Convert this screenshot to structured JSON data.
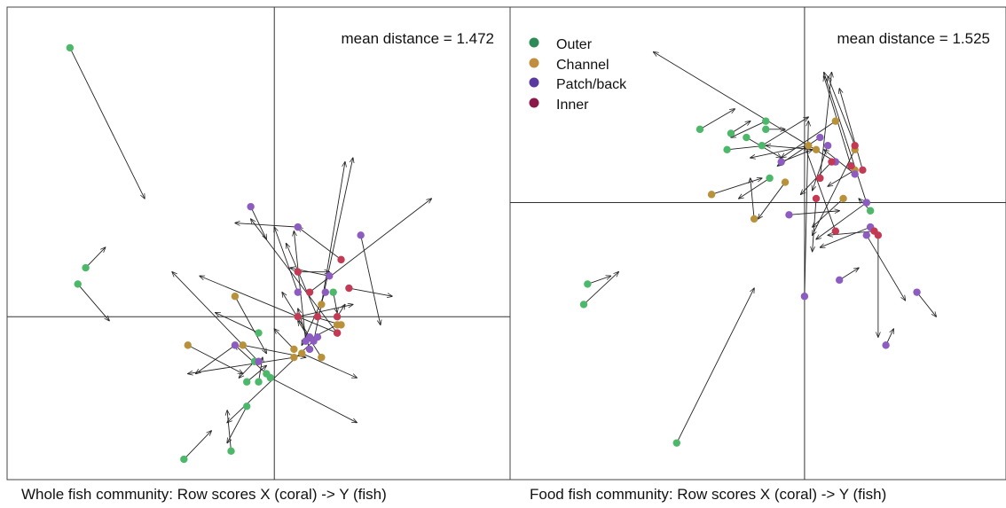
{
  "colors": {
    "outer": "#4db86a",
    "channel": "#b8913a",
    "patchback": "#8c5cc0",
    "inner": "#c23a54",
    "legend_outer": "#2e8b57",
    "legend_channel": "#c08e3e",
    "legend_patchback": "#5b3aa0",
    "legend_inner": "#8b1a4a"
  },
  "legend": [
    {
      "key": "outer",
      "label": "Outer"
    },
    {
      "key": "channel",
      "label": "Channel"
    },
    {
      "key": "patchback",
      "label": "Patch/back"
    },
    {
      "key": "inner",
      "label": "Inner"
    }
  ],
  "chart_data": [
    {
      "type": "scatter",
      "title": "Whole fish community: Row scores X (coral) -> Y (fish)",
      "annotation": "mean distance = 1.472",
      "xlim": [
        -3.4,
        3.0
      ],
      "ylim": [
        -2.0,
        3.8
      ],
      "grid": false,
      "legend": "none",
      "points": [
        {
          "group": "outer",
          "x": -2.6,
          "y": 3.3,
          "x2": -1.65,
          "y2": 1.45
        },
        {
          "group": "outer",
          "x": -2.4,
          "y": 0.6,
          "x2": -2.15,
          "y2": 0.85
        },
        {
          "group": "outer",
          "x": -2.5,
          "y": 0.4,
          "x2": -2.1,
          "y2": -0.05
        },
        {
          "group": "outer",
          "x": -1.15,
          "y": -1.75,
          "x2": -0.8,
          "y2": -1.4
        },
        {
          "group": "outer",
          "x": -0.55,
          "y": -1.65,
          "x2": -0.6,
          "y2": -1.15
        },
        {
          "group": "outer",
          "x": -0.35,
          "y": -1.1,
          "x2": -0.6,
          "y2": -1.55
        },
        {
          "group": "outer",
          "x": -0.2,
          "y": -0.2,
          "x2": -0.75,
          "y2": 0.05
        },
        {
          "group": "outer",
          "x": -0.25,
          "y": -0.55,
          "x2": -0.45,
          "y2": -0.75
        },
        {
          "group": "outer",
          "x": -0.1,
          "y": -0.7,
          "x2": -0.5,
          "y2": -0.35
        },
        {
          "group": "outer",
          "x": -0.35,
          "y": -0.8,
          "x2": -0.1,
          "y2": -0.6
        },
        {
          "group": "outer",
          "x": -0.2,
          "y": -0.8,
          "x2": -0.15,
          "y2": -0.5
        },
        {
          "group": "outer",
          "x": 0.75,
          "y": 0.3,
          "x2": 0.8,
          "y2": 0.05
        },
        {
          "group": "channel",
          "x": -1.1,
          "y": -0.35,
          "x2": -0.4,
          "y2": -0.7
        },
        {
          "group": "channel",
          "x": -0.4,
          "y": -0.35,
          "x2": 0.4,
          "y2": -0.5
        },
        {
          "group": "channel",
          "x": -0.5,
          "y": 0.25,
          "x2": -0.1,
          "y2": -0.45
        },
        {
          "group": "channel",
          "x": 0.25,
          "y": -0.4,
          "x2": 0.0,
          "y2": -0.15
        },
        {
          "group": "channel",
          "x": 0.25,
          "y": -0.5,
          "x2": -1.1,
          "y2": -0.7
        },
        {
          "group": "channel",
          "x": 0.6,
          "y": 0.15,
          "x2": 0.9,
          "y2": 1.9
        },
        {
          "group": "channel",
          "x": 0.6,
          "y": -0.5,
          "x2": 0.3,
          "y2": -0.05
        },
        {
          "group": "channel",
          "x": 0.8,
          "y": -0.1,
          "x2": 0.4,
          "y2": -0.3
        },
        {
          "group": "channel",
          "x": 0.85,
          "y": -0.1,
          "x2": 0.5,
          "y2": 0.0
        },
        {
          "group": "patchback",
          "x": -0.3,
          "y": 1.35,
          "x2": -0.1,
          "y2": 0.95
        },
        {
          "group": "patchback",
          "x": 0.3,
          "y": 1.1,
          "x2": -0.5,
          "y2": 1.15
        },
        {
          "group": "patchback",
          "x": 1.1,
          "y": 1.0,
          "x2": 1.35,
          "y2": -0.1
        },
        {
          "group": "patchback",
          "x": 0.7,
          "y": 0.5,
          "x2": 0.2,
          "y2": 0.6
        },
        {
          "group": "patchback",
          "x": 0.3,
          "y": 0.3,
          "x2": 0.0,
          "y2": 1.1
        },
        {
          "group": "patchback",
          "x": 0.45,
          "y": -0.25,
          "x2": 0.1,
          "y2": 0.3
        },
        {
          "group": "patchback",
          "x": 0.4,
          "y": -0.3,
          "x2": 0.25,
          "y2": 1.05
        },
        {
          "group": "patchback",
          "x": 0.5,
          "y": -0.3,
          "x2": 1.0,
          "y2": 1.95
        },
        {
          "group": "patchback",
          "x": -0.5,
          "y": -0.35,
          "x2": -1.0,
          "y2": -0.7
        },
        {
          "group": "patchback",
          "x": -0.2,
          "y": -0.55,
          "x2": -1.3,
          "y2": 0.55
        },
        {
          "group": "patchback",
          "x": 0.65,
          "y": 0.3,
          "x2": 0.35,
          "y2": -0.35
        },
        {
          "group": "patchback",
          "x": 0.45,
          "y": -0.4,
          "x2": 0.3,
          "y2": 0.1
        },
        {
          "group": "inner",
          "x": 0.85,
          "y": 0.7,
          "x2": 0.3,
          "y2": 1.1
        },
        {
          "group": "inner",
          "x": 0.95,
          "y": 0.35,
          "x2": 1.5,
          "y2": 0.25
        },
        {
          "group": "inner",
          "x": 0.3,
          "y": 0.55,
          "x2": 0.7,
          "y2": 0.55
        },
        {
          "group": "inner",
          "x": 0.3,
          "y": 0.0,
          "x2": 1.0,
          "y2": 0.15
        },
        {
          "group": "inner",
          "x": 0.55,
          "y": 0.0,
          "x2": 0.15,
          "y2": 0.9
        },
        {
          "group": "inner",
          "x": 0.8,
          "y": 0.0,
          "x2": 0.9,
          "y2": 0.15
        },
        {
          "group": "inner",
          "x": 0.8,
          "y": -0.2,
          "x2": -0.3,
          "y2": 1.2
        },
        {
          "group": "inner",
          "x": 0.45,
          "y": 0.3,
          "x2": 2.0,
          "y2": 1.45
        },
        {
          "group": "inner",
          "x": 0.8,
          "y": -0.2,
          "x2": -0.95,
          "y2": 0.5
        },
        {
          "group": "channel",
          "x": 0.35,
          "y": -0.45,
          "x2": 1.05,
          "y2": -0.75
        },
        {
          "group": "patchback",
          "x": 0.55,
          "y": -0.25,
          "x2": -0.6,
          "y2": -1.3
        },
        {
          "group": "outer",
          "x": -0.05,
          "y": -0.75,
          "x2": 1.05,
          "y2": -1.3
        }
      ]
    },
    {
      "type": "scatter",
      "title": "Food fish community: Row scores X (coral) -> Y (fish)",
      "annotation": "mean distance = 1.525",
      "xlim": [
        -3.8,
        2.6
      ],
      "ylim": [
        -3.4,
        2.4
      ],
      "grid": false,
      "legend": "top-left",
      "points": [
        {
          "group": "outer",
          "x": -1.35,
          "y": 0.9,
          "x2": -0.9,
          "y2": 1.15
        },
        {
          "group": "outer",
          "x": -1.0,
          "y": 0.65,
          "x2": -0.5,
          "y2": 0.7
        },
        {
          "group": "outer",
          "x": -0.5,
          "y": 0.9,
          "x2": -0.25,
          "y2": 0.9
        },
        {
          "group": "outer",
          "x": -0.5,
          "y": 1.0,
          "x2": -0.95,
          "y2": 0.8
        },
        {
          "group": "outer",
          "x": -0.45,
          "y": 0.3,
          "x2": -0.85,
          "y2": 0.05
        },
        {
          "group": "outer",
          "x": -0.95,
          "y": 0.85,
          "x2": -0.7,
          "y2": 1.0
        },
        {
          "group": "outer",
          "x": -0.75,
          "y": 0.8,
          "x2": -0.3,
          "y2": 0.55
        },
        {
          "group": "outer",
          "x": -0.55,
          "y": 0.7,
          "x2": 0.05,
          "y2": 1.05
        },
        {
          "group": "outer",
          "x": 0.85,
          "y": -0.1,
          "x2": 0.7,
          "y2": 0.05
        },
        {
          "group": "outer",
          "x": -2.8,
          "y": -1.0,
          "x2": -2.5,
          "y2": -0.9
        },
        {
          "group": "outer",
          "x": -2.85,
          "y": -1.25,
          "x2": -2.4,
          "y2": -0.85
        },
        {
          "group": "outer",
          "x": -1.65,
          "y": -2.95,
          "x2": -0.65,
          "y2": -1.05
        },
        {
          "group": "channel",
          "x": -1.2,
          "y": 0.1,
          "x2": -0.55,
          "y2": 0.3
        },
        {
          "group": "channel",
          "x": -0.65,
          "y": -0.2,
          "x2": -0.7,
          "y2": 0.3
        },
        {
          "group": "channel",
          "x": -0.25,
          "y": 0.25,
          "x2": -0.6,
          "y2": -0.2
        },
        {
          "group": "channel",
          "x": 0.05,
          "y": 0.7,
          "x2": -0.7,
          "y2": 0.55
        },
        {
          "group": "channel",
          "x": 0.15,
          "y": 0.65,
          "x2": -0.5,
          "y2": 0.7
        },
        {
          "group": "channel",
          "x": 0.4,
          "y": 1.0,
          "x2": -0.3,
          "y2": 0.55
        },
        {
          "group": "channel",
          "x": 0.5,
          "y": 0.05,
          "x2": 0.1,
          "y2": -0.3
        },
        {
          "group": "channel",
          "x": 0.65,
          "y": 0.4,
          "x2": 0.3,
          "y2": 0.2
        },
        {
          "group": "channel",
          "x": 0.65,
          "y": 0.65,
          "x2": 0.1,
          "y2": -0.4
        },
        {
          "group": "patchback",
          "x": -0.3,
          "y": 0.5,
          "x2": 0.1,
          "y2": 0.65
        },
        {
          "group": "patchback",
          "x": 0.2,
          "y": 0.8,
          "x2": -0.35,
          "y2": 0.45
        },
        {
          "group": "patchback",
          "x": 0.3,
          "y": 0.7,
          "x2": 0.1,
          "y2": 0.15
        },
        {
          "group": "patchback",
          "x": 0.4,
          "y": 0.5,
          "x2": -1.95,
          "y2": 1.85
        },
        {
          "group": "patchback",
          "x": 0.65,
          "y": 0.35,
          "x2": 0.25,
          "y2": 0.65
        },
        {
          "group": "patchback",
          "x": -0.2,
          "y": -0.15,
          "x2": 0.45,
          "y2": -0.1
        },
        {
          "group": "patchback",
          "x": 0.8,
          "y": 0.0,
          "x2": 0.15,
          "y2": -0.45
        },
        {
          "group": "patchback",
          "x": 0.8,
          "y": -0.4,
          "x2": 1.3,
          "y2": -1.2
        },
        {
          "group": "patchback",
          "x": 0.85,
          "y": -0.3,
          "x2": 0.2,
          "y2": -0.55
        },
        {
          "group": "patchback",
          "x": 0.45,
          "y": -0.95,
          "x2": 0.7,
          "y2": -0.8
        },
        {
          "group": "patchback",
          "x": 0.0,
          "y": -1.15,
          "x2": 0.05,
          "y2": 1.0
        },
        {
          "group": "patchback",
          "x": 1.45,
          "y": -1.1,
          "x2": 1.7,
          "y2": -1.4
        },
        {
          "group": "patchback",
          "x": 1.05,
          "y": -1.75,
          "x2": 1.15,
          "y2": -1.55
        },
        {
          "group": "patchback",
          "x": 0.8,
          "y": 0.0,
          "x2": 0.25,
          "y2": 1.6
        },
        {
          "group": "inner",
          "x": 0.2,
          "y": 0.3,
          "x2": 0.35,
          "y2": 1.6
        },
        {
          "group": "inner",
          "x": 0.35,
          "y": 0.5,
          "x2": -0.05,
          "y2": 0.1
        },
        {
          "group": "inner",
          "x": 0.65,
          "y": 0.7,
          "x2": 0.3,
          "y2": 1.55
        },
        {
          "group": "inner",
          "x": 0.75,
          "y": 0.4,
          "x2": 0.45,
          "y2": 1.4
        },
        {
          "group": "inner",
          "x": 0.4,
          "y": -0.35,
          "x2": 0.0,
          "y2": 0.7
        },
        {
          "group": "inner",
          "x": 0.95,
          "y": -0.4,
          "x2": 0.95,
          "y2": -1.65
        },
        {
          "group": "inner",
          "x": 0.9,
          "y": -0.35,
          "x2": 0.3,
          "y2": -0.4
        },
        {
          "group": "inner",
          "x": 0.6,
          "y": 0.45,
          "x2": 0.25,
          "y2": 1.55
        },
        {
          "group": "inner",
          "x": 0.15,
          "y": 0.05,
          "x2": 0.1,
          "y2": -0.6
        }
      ]
    }
  ]
}
